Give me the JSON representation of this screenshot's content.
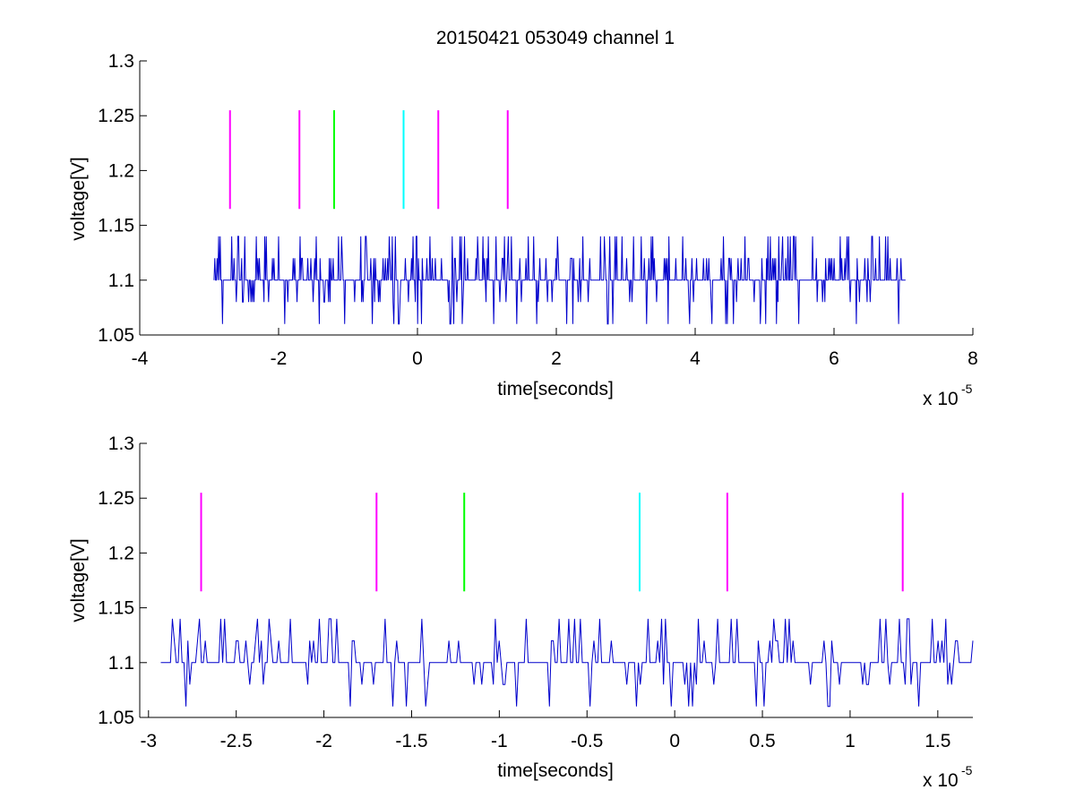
{
  "chart_data": [
    {
      "type": "line",
      "title": "20150421 053049 channel 1",
      "xlabel": "time[seconds]",
      "ylabel": "voltage[V]",
      "x_exponent_label": "x 10",
      "x_exponent": "-5",
      "xlim": [
        -4,
        8
      ],
      "ylim": [
        1.05,
        1.3
      ],
      "xticks": [
        -4,
        -2,
        0,
        2,
        4,
        6,
        8
      ],
      "xtick_labels": [
        "-4",
        "-2",
        "0",
        "2",
        "4",
        "6",
        "8"
      ],
      "yticks": [
        1.05,
        1.1,
        1.15,
        1.2,
        1.25,
        1.3
      ],
      "ytick_labels": [
        "1.05",
        "1.1",
        "1.15",
        "1.2",
        "1.25",
        "1.3"
      ],
      "grid": false,
      "series": [
        {
          "kind": "signal",
          "color": "#0000cc",
          "x_range": [
            -2.93,
            7.03
          ],
          "levels": [
            1.06,
            1.08,
            1.1,
            1.12,
            1.14
          ],
          "baseline": 1.1
        }
      ],
      "markers": [
        {
          "x": -2.7,
          "y_range": [
            1.165,
            1.255
          ],
          "color": "#ff00ff"
        },
        {
          "x": -1.7,
          "y_range": [
            1.165,
            1.255
          ],
          "color": "#ff00ff"
        },
        {
          "x": -1.2,
          "y_range": [
            1.165,
            1.255
          ],
          "color": "#00ff00"
        },
        {
          "x": -0.2,
          "y_range": [
            1.165,
            1.255
          ],
          "color": "#00ffff"
        },
        {
          "x": 0.3,
          "y_range": [
            1.165,
            1.255
          ],
          "color": "#ff00ff"
        },
        {
          "x": 1.3,
          "y_range": [
            1.165,
            1.255
          ],
          "color": "#ff00ff"
        }
      ]
    },
    {
      "type": "line",
      "title": "",
      "xlabel": "time[seconds]",
      "ylabel": "voltage[V]",
      "x_exponent_label": "x 10",
      "x_exponent": "-5",
      "xlim": [
        -3.05,
        1.7
      ],
      "ylim": [
        1.05,
        1.3
      ],
      "xticks": [
        -3,
        -2.5,
        -2,
        -1.5,
        -1,
        -0.5,
        0,
        0.5,
        1,
        1.5
      ],
      "xtick_labels": [
        "-3",
        "-2.5",
        "-2",
        "-1.5",
        "-1",
        "-0.5",
        "0",
        "0.5",
        "1",
        "1.5"
      ],
      "yticks": [
        1.05,
        1.1,
        1.15,
        1.2,
        1.25,
        1.3
      ],
      "ytick_labels": [
        "1.05",
        "1.1",
        "1.15",
        "1.2",
        "1.25",
        "1.3"
      ],
      "grid": false,
      "series": [
        {
          "kind": "signal",
          "color": "#0000cc",
          "x_range": [
            -2.93,
            1.7
          ],
          "levels": [
            1.06,
            1.08,
            1.1,
            1.12,
            1.14
          ],
          "baseline": 1.1
        }
      ],
      "markers": [
        {
          "x": -2.7,
          "y_range": [
            1.165,
            1.255
          ],
          "color": "#ff00ff"
        },
        {
          "x": -1.7,
          "y_range": [
            1.165,
            1.255
          ],
          "color": "#ff00ff"
        },
        {
          "x": -1.2,
          "y_range": [
            1.165,
            1.255
          ],
          "color": "#00ff00"
        },
        {
          "x": -0.2,
          "y_range": [
            1.165,
            1.255
          ],
          "color": "#00ffff"
        },
        {
          "x": 0.3,
          "y_range": [
            1.165,
            1.255
          ],
          "color": "#ff00ff"
        },
        {
          "x": 1.3,
          "y_range": [
            1.165,
            1.255
          ],
          "color": "#ff00ff"
        }
      ]
    }
  ]
}
